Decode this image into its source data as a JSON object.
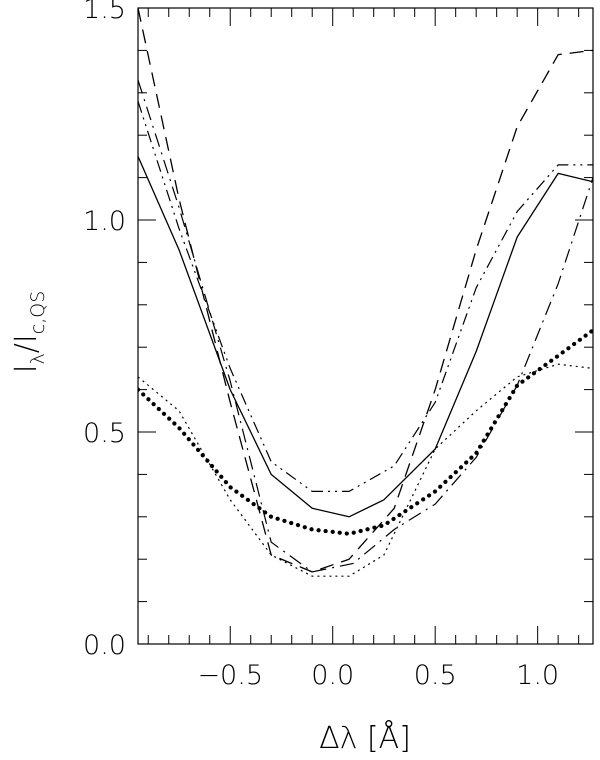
{
  "chart_data": {
    "type": "line",
    "xlabel": "Δλ [Å]",
    "ylabel": {
      "main": "I",
      "sub_top": "λ",
      "slash": "/",
      "main2": "I",
      "sub_bottom": "c,QS"
    },
    "xlim": [
      -0.95,
      1.27
    ],
    "ylim": [
      0.0,
      1.5
    ],
    "x_ticks": [
      -0.5,
      0.0,
      0.5,
      1.0
    ],
    "x_tick_labels": [
      "−0.5",
      "0.0",
      "0.5",
      "1.0"
    ],
    "y_ticks": [
      0.0,
      0.5,
      1.0,
      1.5
    ],
    "y_tick_labels": [
      "0.0",
      "0.5",
      "1.0",
      "1.5"
    ],
    "grid": false,
    "series": [
      {
        "style": "solid",
        "x": [
          -0.95,
          -0.75,
          -0.5,
          -0.3,
          -0.1,
          0.08,
          0.25,
          0.5,
          0.7,
          0.9,
          1.1,
          1.27
        ],
        "y": [
          1.15,
          0.93,
          0.6,
          0.4,
          0.32,
          0.3,
          0.34,
          0.46,
          0.69,
          0.96,
          1.11,
          1.09
        ]
      },
      {
        "style": "dashed",
        "x": [
          -0.95,
          -0.75,
          -0.5,
          -0.3,
          -0.1,
          0.08,
          0.3,
          0.5,
          0.7,
          0.9,
          1.1,
          1.27
        ],
        "y": [
          1.5,
          1.05,
          0.57,
          0.21,
          0.17,
          0.2,
          0.32,
          0.6,
          0.93,
          1.22,
          1.39,
          1.4
        ]
      },
      {
        "style": "dash-dot",
        "x": [
          -0.95,
          -0.75,
          -0.5,
          -0.3,
          -0.1,
          0.1,
          0.3,
          0.5,
          0.7,
          0.9,
          1.1,
          1.27
        ],
        "y": [
          1.33,
          1.03,
          0.62,
          0.24,
          0.17,
          0.19,
          0.27,
          0.33,
          0.44,
          0.61,
          0.85,
          1.1
        ]
      },
      {
        "style": "dash-dot-dot",
        "x": [
          -0.95,
          -0.75,
          -0.5,
          -0.3,
          -0.1,
          0.08,
          0.3,
          0.5,
          0.7,
          0.9,
          1.1,
          1.27
        ],
        "y": [
          1.28,
          0.98,
          0.65,
          0.43,
          0.36,
          0.36,
          0.42,
          0.57,
          0.84,
          1.02,
          1.13,
          1.13
        ]
      },
      {
        "style": "dotted-thin",
        "x": [
          -0.95,
          -0.75,
          -0.5,
          -0.3,
          -0.1,
          0.08,
          0.25,
          0.5,
          0.7,
          0.9,
          1.1,
          1.27
        ],
        "y": [
          0.63,
          0.55,
          0.34,
          0.21,
          0.16,
          0.16,
          0.21,
          0.46,
          0.55,
          0.63,
          0.66,
          0.65
        ]
      },
      {
        "style": "dotted-thick",
        "x": [
          -0.95,
          -0.75,
          -0.5,
          -0.3,
          -0.1,
          0.08,
          0.25,
          0.5,
          0.7,
          0.9,
          1.1,
          1.27
        ],
        "y": [
          0.6,
          0.51,
          0.37,
          0.3,
          0.27,
          0.26,
          0.28,
          0.36,
          0.45,
          0.61,
          0.68,
          0.74
        ]
      }
    ]
  }
}
